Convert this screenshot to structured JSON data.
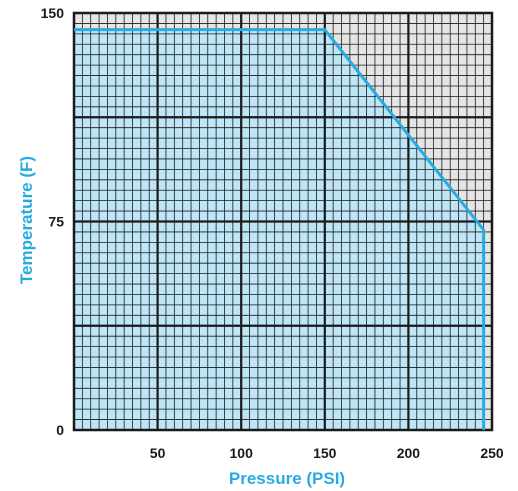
{
  "chart_data": {
    "type": "area",
    "xlabel": "Pressure (PSI)",
    "ylabel": "Temperature (F)",
    "xlim": [
      0,
      250
    ],
    "ylim": [
      0,
      150
    ],
    "x_ticks": [
      50,
      100,
      150,
      200,
      250
    ],
    "x_tick_labels": [
      "50",
      "100",
      "150",
      "200",
      "250"
    ],
    "y_ticks": [
      0,
      75,
      150
    ],
    "y_tick_labels": [
      "0",
      "75",
      "150"
    ],
    "grid": true,
    "major_grid_step_x": 50,
    "major_grid_step_y": 37.5,
    "minor_grid_divisions": 10,
    "series": [
      {
        "x": [
          0,
          150,
          245,
          245
        ],
        "y": [
          144,
          144,
          72,
          0
        ],
        "color": "#29abe2",
        "fill": "#bfe6f7"
      }
    ]
  },
  "colors": {
    "axis_label": "#29abe2",
    "tick_label": "#1a1a1a",
    "grid_line": "#1a1a1a",
    "plot_background": "#e5e5e5"
  }
}
